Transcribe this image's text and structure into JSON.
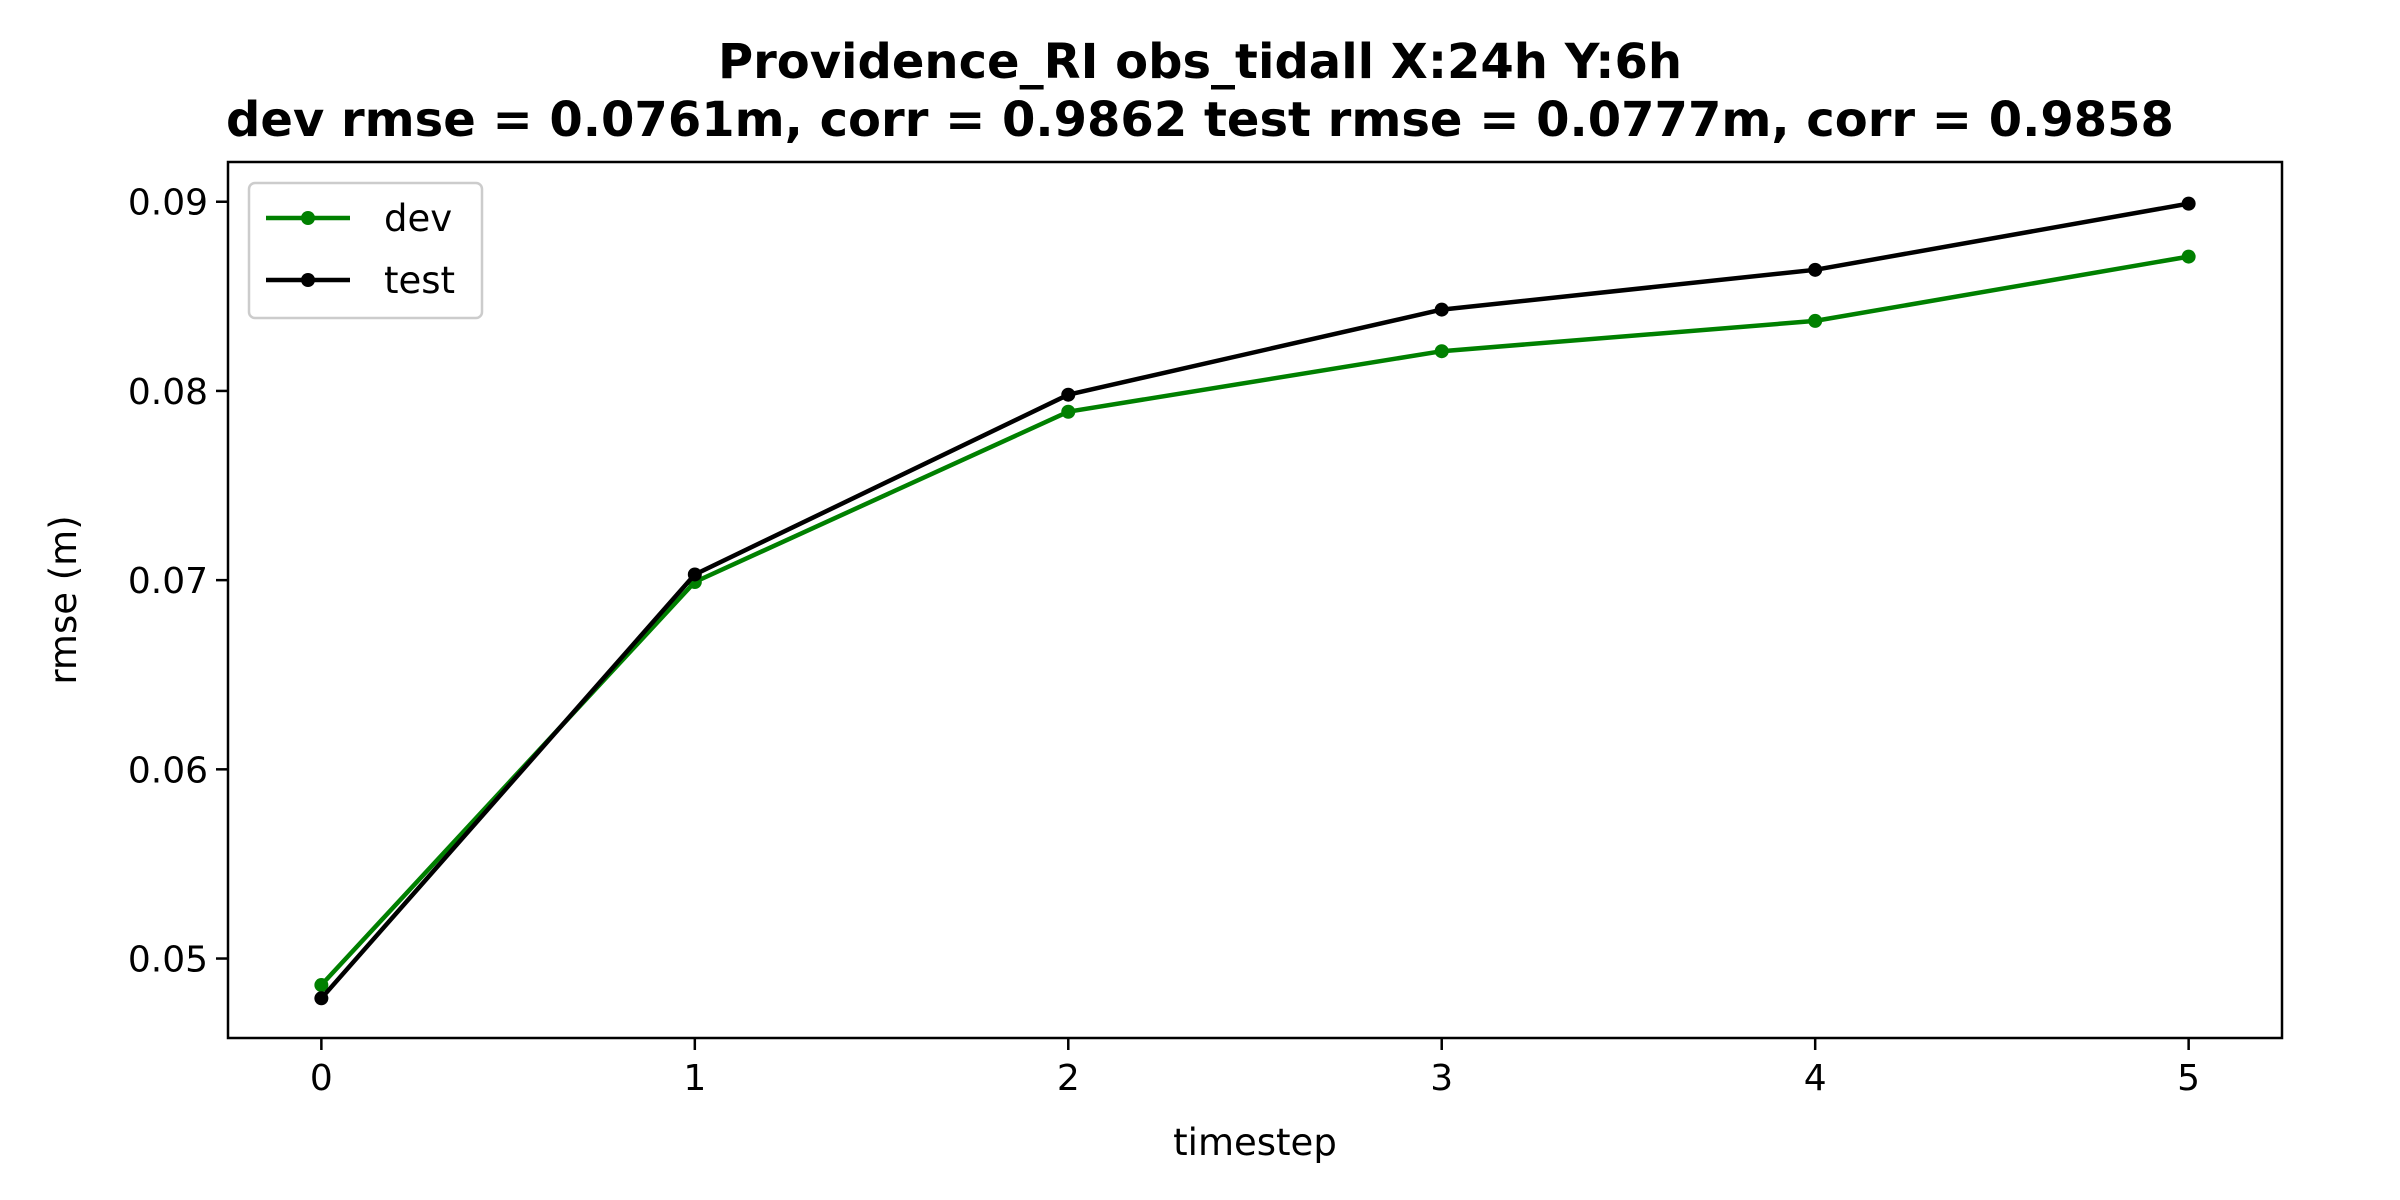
{
  "chart_data": {
    "type": "line",
    "title_line1": "Providence_RI   obs_tidall   X:24h   Y:6h",
    "title_line2": "dev rmse = 0.0761m, corr = 0.9862   test rmse = 0.0777m, corr = 0.9858",
    "xlabel": "timestep",
    "ylabel": "rmse (m)",
    "x": [
      0,
      1,
      2,
      3,
      4,
      5
    ],
    "xticks": [
      0,
      1,
      2,
      3,
      4,
      5
    ],
    "xtick_labels": [
      "0",
      "1",
      "2",
      "3",
      "4",
      "5"
    ],
    "yticks": [
      0.05,
      0.06,
      0.07,
      0.08,
      0.09
    ],
    "ytick_labels": [
      "0.05",
      "0.06",
      "0.07",
      "0.08",
      "0.09"
    ],
    "xlim": [
      -0.25,
      5.25
    ],
    "ylim": [
      0.0458,
      0.0921
    ],
    "grid": false,
    "legend_position": "top-left",
    "series": [
      {
        "name": "dev",
        "color": "#008000",
        "values": [
          0.0486,
          0.0699,
          0.0789,
          0.0821,
          0.0837,
          0.0871
        ]
      },
      {
        "name": "test",
        "color": "#000000",
        "values": [
          0.0479,
          0.0703,
          0.0798,
          0.0843,
          0.0864,
          0.0899
        ]
      }
    ]
  }
}
